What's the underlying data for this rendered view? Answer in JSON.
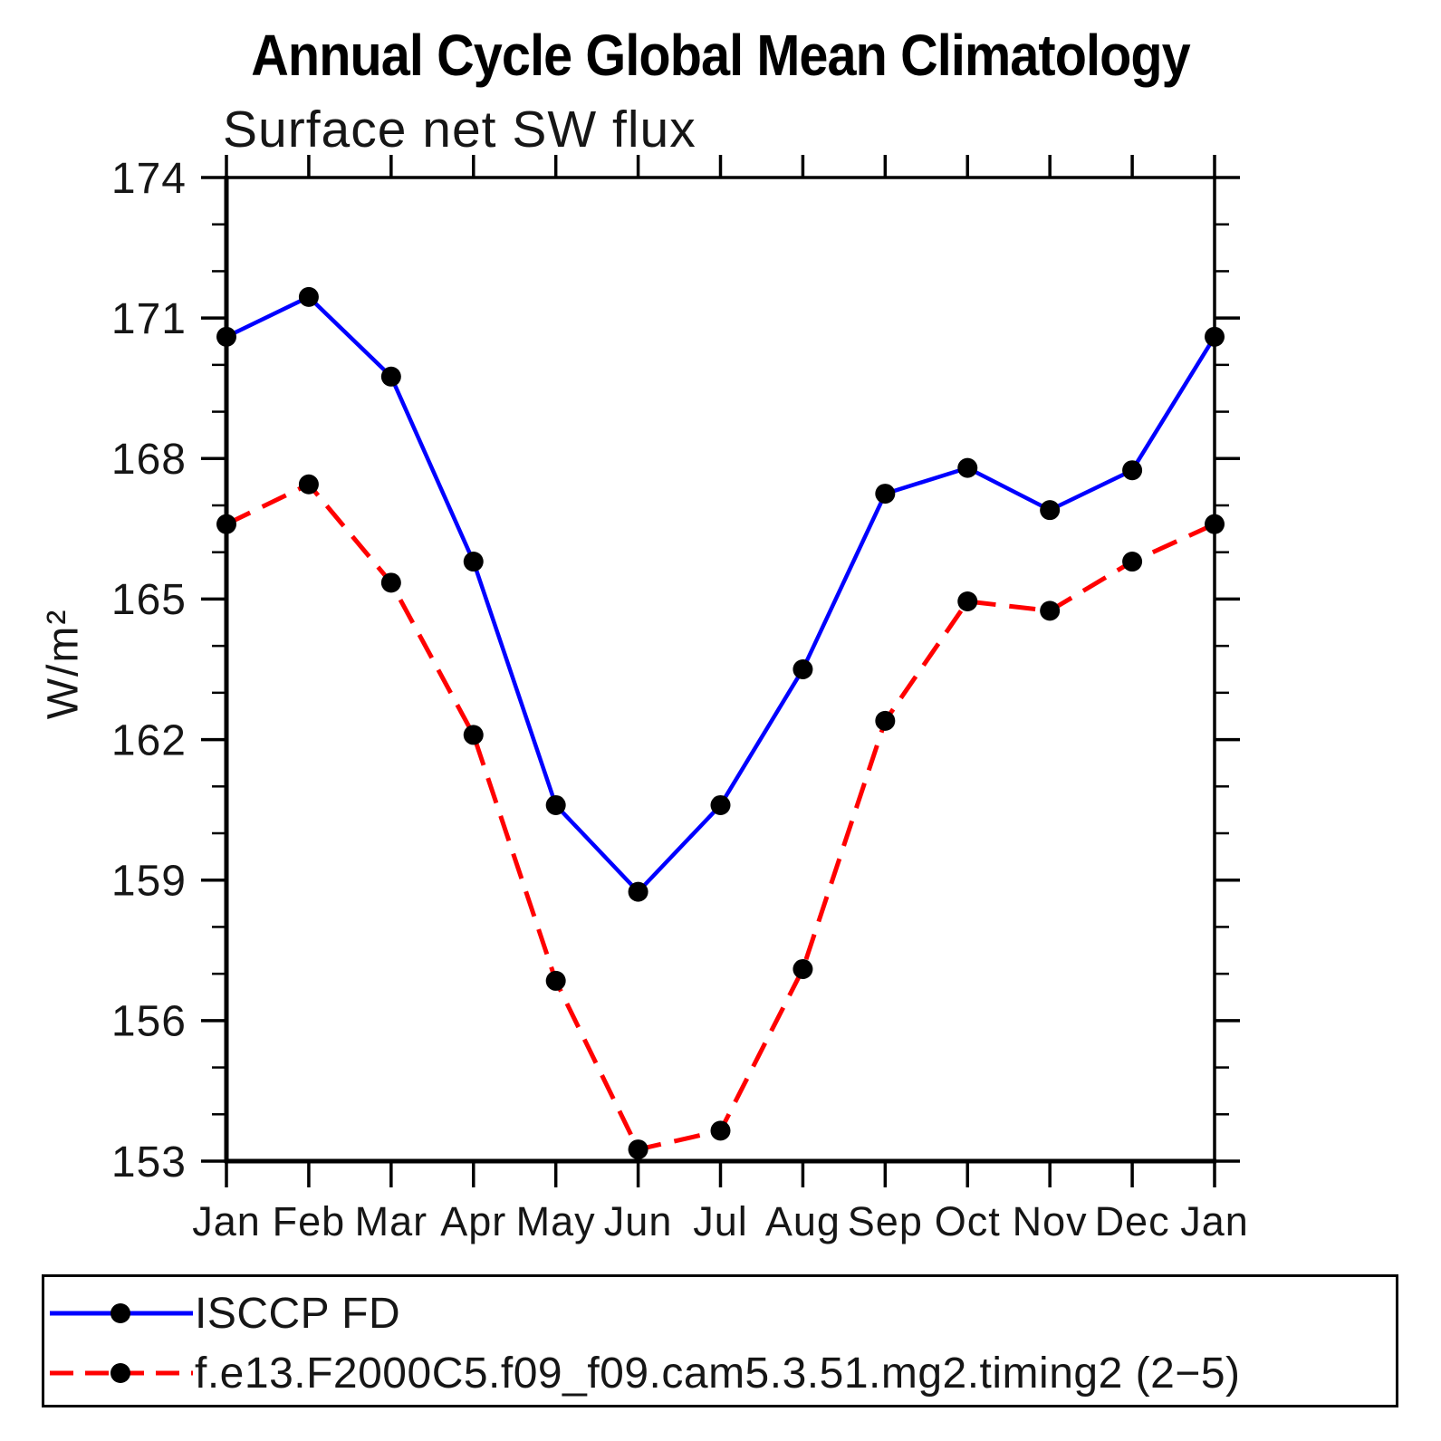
{
  "chart_data": {
    "type": "line",
    "title": "Annual Cycle Global Mean Climatology",
    "subtitle": "Surface net SW flux",
    "ylabel": "W/m²",
    "xlabel": "",
    "categories": [
      "Jan",
      "Feb",
      "Mar",
      "Apr",
      "May",
      "Jun",
      "Jul",
      "Aug",
      "Sep",
      "Oct",
      "Nov",
      "Dec",
      "Jan"
    ],
    "ylim": [
      153,
      174
    ],
    "yticks": [
      153,
      156,
      159,
      162,
      165,
      168,
      171,
      174
    ],
    "y_minor_tick_interval": 1,
    "grid": false,
    "legend_position": "bottom-box",
    "marker_color": "#000000",
    "axis_color": "#000000",
    "series": [
      {
        "name": "ISCCP FD",
        "color": "#0000ff",
        "line_style": "solid",
        "values": [
          170.6,
          171.45,
          169.75,
          165.8,
          160.6,
          158.75,
          160.6,
          163.5,
          167.25,
          167.8,
          166.9,
          167.75,
          170.6
        ]
      },
      {
        "name": "f.e13.F2000C5.f09_f09.cam5.3.51.mg2.timing2 (2−5)",
        "color": "#ff0000",
        "line_style": "dashed",
        "values": [
          166.6,
          167.45,
          165.35,
          162.1,
          156.85,
          153.25,
          153.65,
          157.1,
          162.4,
          164.95,
          164.75,
          165.8,
          166.6
        ]
      }
    ]
  }
}
